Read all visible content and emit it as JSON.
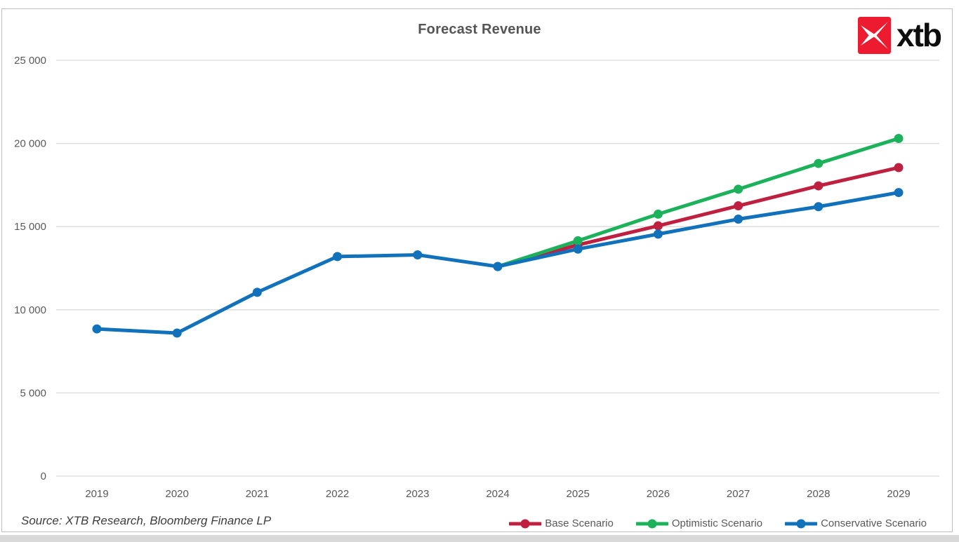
{
  "chart_data": {
    "type": "line",
    "title": "Forecast Revenue",
    "xlabel": "",
    "ylabel": "",
    "x": [
      2019,
      2020,
      2021,
      2022,
      2023,
      2024,
      2025,
      2026,
      2027,
      2028,
      2029
    ],
    "series": [
      {
        "name": "Base Scenario",
        "color": "#C0203F",
        "values": [
          null,
          null,
          null,
          null,
          null,
          12600,
          13900,
          15050,
          16250,
          17450,
          18550
        ]
      },
      {
        "name": "Optimistic Scenario",
        "color": "#1CB25B",
        "values": [
          null,
          null,
          null,
          null,
          null,
          12600,
          14150,
          15750,
          17250,
          18800,
          20300
        ]
      },
      {
        "name": "Conservative Scenario",
        "color": "#1171BA",
        "values": [
          8850,
          8600,
          11050,
          13200,
          13300,
          12600,
          13650,
          14550,
          15450,
          16200,
          17050
        ]
      }
    ],
    "ylim": [
      0,
      25000
    ],
    "ytick_step": 5000,
    "ytick_labels": [
      "0",
      "5 000",
      "10 000",
      "15 000",
      "20 000",
      "25 000"
    ],
    "grid": true,
    "legend_position": "bottom-right"
  },
  "logo": {
    "text": "xtb"
  },
  "source": {
    "text": "Source: XTB Research, Bloomberg Finance LP"
  },
  "colors": {
    "grid": "#D9D9D9",
    "axis_text": "#595959",
    "title_text": "#555555",
    "card_border": "#BFBFBF",
    "logo_red": "#ED1B2F",
    "bottom_strip": "#D9D9D9"
  }
}
